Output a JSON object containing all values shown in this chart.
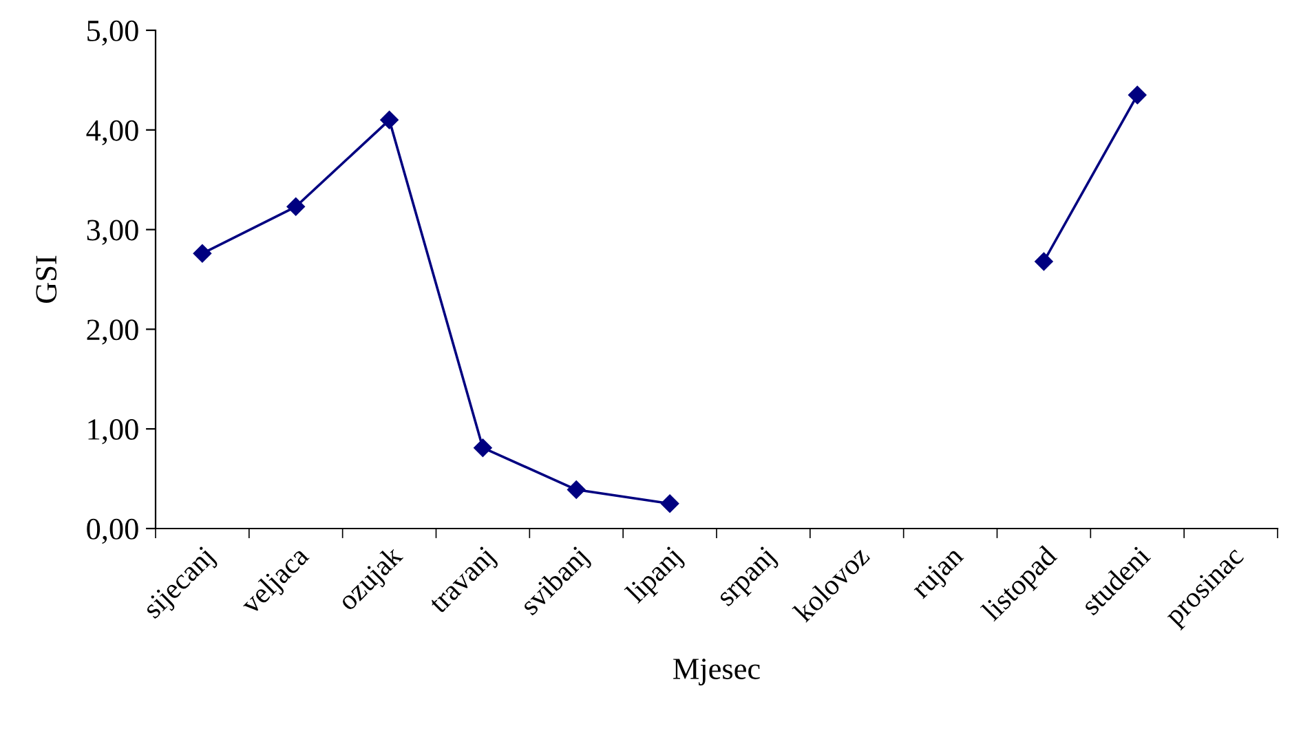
{
  "chart_data": {
    "type": "line",
    "xlabel": "Mjesec",
    "ylabel": "GSI",
    "categories": [
      "sijecanj",
      "veljaca",
      "ozujak",
      "travanj",
      "svibanj",
      "lipanj",
      "srpanj",
      "kolovoz",
      "rujan",
      "listopad",
      "studeni",
      "prosinac"
    ],
    "series": [
      {
        "color": "#000080",
        "values": [
          2.76,
          3.23,
          4.1,
          0.81,
          0.39,
          0.25,
          null,
          null,
          null,
          2.68,
          4.35,
          null
        ]
      }
    ],
    "ylim": [
      0,
      5
    ],
    "yticks": [
      {
        "value": 0,
        "label": "0,00"
      },
      {
        "value": 1,
        "label": "1,00"
      },
      {
        "value": 2,
        "label": "2,00"
      },
      {
        "value": 3,
        "label": "3,00"
      },
      {
        "value": 4,
        "label": "4,00"
      },
      {
        "value": 5,
        "label": "5,00"
      }
    ],
    "marker": "diamond",
    "line_style": "solid",
    "grid": false,
    "legend": false
  }
}
